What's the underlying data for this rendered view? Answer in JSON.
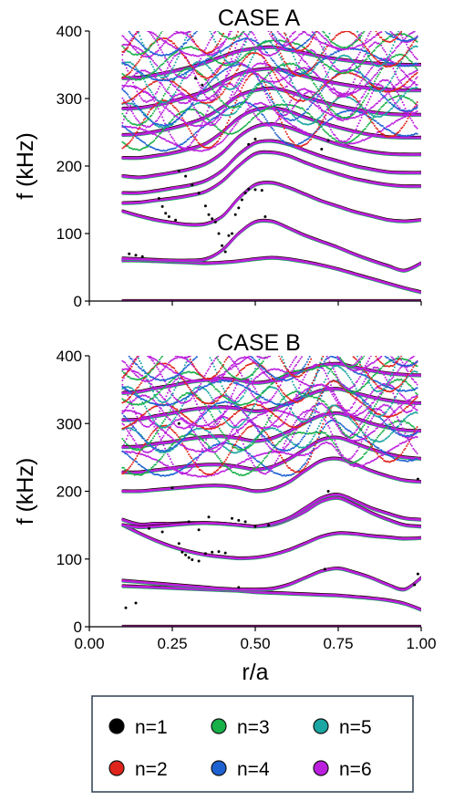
{
  "chart_data": [
    {
      "type": "scatter",
      "title": "CASE A",
      "xlabel": "",
      "ylabel": "f (kHz)",
      "xlim": [
        0.0,
        1.0
      ],
      "ylim": [
        0,
        400
      ],
      "xticks": [
        0.0,
        0.25,
        0.5,
        0.75,
        1.0
      ],
      "yticks": [
        0,
        100,
        200,
        300,
        400
      ],
      "ytick_labels": [
        "0",
        "100",
        "200",
        "300",
        "400"
      ],
      "grid": false,
      "dominant_series": "n=6",
      "x_grid": [
        0.1,
        0.15,
        0.2,
        0.25,
        0.3,
        0.35,
        0.4,
        0.45,
        0.5,
        0.55,
        0.6,
        0.65,
        0.7,
        0.75,
        0.8,
        0.85,
        0.9,
        0.95,
        1.0
      ],
      "continuum_branches": [
        [
          0,
          0,
          0,
          0,
          0,
          0,
          0,
          0,
          0,
          0,
          0,
          0,
          0,
          0,
          0,
          0,
          0,
          0,
          0
        ],
        [
          60,
          60,
          59,
          58,
          57,
          56,
          57,
          59,
          62,
          64,
          62,
          58,
          53,
          47,
          40,
          33,
          26,
          19,
          13
        ],
        [
          63,
          62,
          61,
          60,
          60,
          62,
          75,
          100,
          117,
          118,
          108,
          97,
          88,
          79,
          69,
          60,
          52,
          45,
          56
        ],
        [
          133,
          126,
          120,
          116,
          113,
          114,
          125,
          152,
          172,
          175,
          168,
          158,
          148,
          140,
          132,
          126,
          120,
          118,
          120
        ],
        [
          145,
          146,
          149,
          152,
          156,
          162,
          177,
          200,
          218,
          220,
          215,
          205,
          196,
          188,
          181,
          176,
          172,
          170,
          170
        ],
        [
          160,
          160,
          163,
          167,
          171,
          178,
          193,
          217,
          234,
          237,
          232,
          223,
          214,
          207,
          200,
          195,
          191,
          190,
          190
        ],
        [
          185,
          183,
          186,
          190,
          195,
          203,
          219,
          243,
          258,
          262,
          257,
          248,
          240,
          232,
          226,
          221,
          218,
          217,
          217
        ],
        [
          212,
          212,
          215,
          219,
          225,
          233,
          250,
          271,
          283,
          286,
          281,
          272,
          264,
          257,
          251,
          246,
          243,
          242,
          242
        ],
        [
          246,
          247,
          251,
          256,
          263,
          272,
          287,
          304,
          312,
          315,
          310,
          302,
          295,
          289,
          284,
          280,
          277,
          276,
          276
        ],
        [
          285,
          286,
          290,
          296,
          303,
          311,
          324,
          336,
          342,
          344,
          340,
          333,
          327,
          322,
          318,
          315,
          313,
          312,
          312
        ],
        [
          330,
          331,
          335,
          340,
          346,
          353,
          362,
          370,
          374,
          376,
          372,
          367,
          362,
          358,
          355,
          352,
          351,
          350,
          350
        ]
      ],
      "n1_markers": [
        [
          0.12,
          70
        ],
        [
          0.14,
          68
        ],
        [
          0.16,
          66
        ],
        [
          0.27,
          193
        ],
        [
          0.29,
          185
        ],
        [
          0.31,
          172
        ],
        [
          0.33,
          160
        ],
        [
          0.35,
          141
        ],
        [
          0.36,
          128
        ],
        [
          0.37,
          122
        ],
        [
          0.38,
          117
        ],
        [
          0.39,
          100
        ],
        [
          0.4,
          82
        ],
        [
          0.41,
          73
        ],
        [
          0.42,
          97
        ],
        [
          0.43,
          100
        ],
        [
          0.44,
          128
        ],
        [
          0.45,
          138
        ],
        [
          0.46,
          150
        ],
        [
          0.47,
          160
        ],
        [
          0.48,
          166
        ],
        [
          0.5,
          165
        ],
        [
          0.52,
          164
        ],
        [
          0.53,
          125
        ],
        [
          0.21,
          152
        ],
        [
          0.22,
          140
        ],
        [
          0.23,
          130
        ],
        [
          0.24,
          125
        ],
        [
          0.26,
          120
        ],
        [
          0.32,
          330
        ],
        [
          0.34,
          320
        ],
        [
          0.7,
          225
        ],
        [
          0.72,
          238
        ],
        [
          0.5,
          240
        ],
        [
          0.48,
          232
        ]
      ],
      "series": [
        {
          "name": "n=1",
          "color": "#000000"
        },
        {
          "name": "n=2",
          "color": "#e0241c"
        },
        {
          "name": "n=3",
          "color": "#18b048"
        },
        {
          "name": "n=4",
          "color": "#1e62d2"
        },
        {
          "name": "n=5",
          "color": "#1aa6a2"
        },
        {
          "name": "n=6",
          "color": "#bb1fdd"
        }
      ]
    },
    {
      "type": "scatter",
      "title": "CASE B",
      "xlabel": "r/a",
      "ylabel": "f (kHz)",
      "xlim": [
        0.0,
        1.0
      ],
      "ylim": [
        0,
        400
      ],
      "xticks": [
        0.0,
        0.25,
        0.5,
        0.75,
        1.0
      ],
      "xtick_labels": [
        "0.00",
        "0.25",
        "0.50",
        "0.75",
        "1.00"
      ],
      "yticks": [
        0,
        100,
        200,
        300,
        400
      ],
      "ytick_labels": [
        "0",
        "100",
        "200",
        "300",
        "400"
      ],
      "grid": false,
      "dominant_series": "n=6",
      "x_grid": [
        0.1,
        0.15,
        0.2,
        0.25,
        0.3,
        0.35,
        0.4,
        0.45,
        0.5,
        0.55,
        0.6,
        0.65,
        0.7,
        0.75,
        0.8,
        0.85,
        0.9,
        0.95,
        1.0
      ],
      "continuum_branches": [
        [
          0,
          0,
          0,
          0,
          0,
          0,
          0,
          0,
          0,
          0,
          0,
          0,
          0,
          0,
          0,
          0,
          0,
          0,
          0
        ],
        [
          60,
          59,
          58,
          57,
          56,
          55,
          54,
          53,
          51,
          50,
          49,
          48,
          47,
          46,
          44,
          42,
          39,
          34,
          25
        ],
        [
          68,
          66,
          64,
          62,
          60,
          58,
          56,
          55,
          55,
          56,
          62,
          72,
          82,
          86,
          80,
          72,
          62,
          55,
          72
        ],
        [
          150,
          138,
          127,
          118,
          111,
          106,
          103,
          101,
          102,
          106,
          113,
          123,
          133,
          138,
          137,
          134,
          132,
          130,
          131
        ],
        [
          158,
          151,
          152,
          152,
          153,
          153,
          152,
          150,
          148,
          150,
          158,
          170,
          185,
          190,
          180,
          168,
          158,
          150,
          148
        ],
        [
          150,
          147,
          148,
          150,
          152,
          153,
          152,
          150,
          148,
          152,
          160,
          175,
          190,
          195,
          186,
          175,
          167,
          160,
          158
        ],
        [
          200,
          200,
          202,
          204,
          206,
          208,
          208,
          205,
          200,
          203,
          213,
          230,
          245,
          248,
          240,
          230,
          222,
          216,
          214
        ],
        [
          228,
          228,
          231,
          234,
          237,
          239,
          239,
          236,
          232,
          236,
          247,
          262,
          276,
          279,
          271,
          262,
          255,
          250,
          248
        ],
        [
          265,
          266,
          270,
          273,
          277,
          280,
          281,
          278,
          274,
          278,
          288,
          301,
          312,
          315,
          308,
          300,
          294,
          290,
          289
        ],
        [
          305,
          306,
          311,
          315,
          320,
          323,
          324,
          322,
          318,
          321,
          330,
          340,
          349,
          351,
          345,
          339,
          334,
          331,
          330
        ],
        [
          345,
          347,
          352,
          356,
          361,
          364,
          366,
          364,
          360,
          363,
          371,
          379,
          386,
          388,
          383,
          378,
          374,
          372,
          371
        ]
      ],
      "n1_markers": [
        [
          0.11,
          28
        ],
        [
          0.14,
          35
        ],
        [
          0.18,
          145
        ],
        [
          0.22,
          140
        ],
        [
          0.27,
          123
        ],
        [
          0.28,
          110
        ],
        [
          0.29,
          106
        ],
        [
          0.3,
          102
        ],
        [
          0.31,
          99
        ],
        [
          0.33,
          97
        ],
        [
          0.35,
          108
        ],
        [
          0.37,
          110
        ],
        [
          0.39,
          111
        ],
        [
          0.41,
          109
        ],
        [
          0.43,
          160
        ],
        [
          0.45,
          157
        ],
        [
          0.47,
          155
        ],
        [
          0.5,
          148
        ],
        [
          0.54,
          150
        ],
        [
          0.3,
          155
        ],
        [
          0.33,
          143
        ],
        [
          0.36,
          162
        ],
        [
          0.25,
          205
        ],
        [
          0.27,
          300
        ],
        [
          0.45,
          58
        ],
        [
          0.98,
          62
        ],
        [
          0.99,
          78
        ],
        [
          0.99,
          218
        ],
        [
          0.71,
          85
        ],
        [
          0.72,
          200
        ]
      ],
      "series": [
        {
          "name": "n=1",
          "color": "#000000"
        },
        {
          "name": "n=2",
          "color": "#e0241c"
        },
        {
          "name": "n=3",
          "color": "#18b048"
        },
        {
          "name": "n=4",
          "color": "#1e62d2"
        },
        {
          "name": "n=5",
          "color": "#1aa6a2"
        },
        {
          "name": "n=6",
          "color": "#bb1fdd"
        }
      ]
    }
  ],
  "legend": {
    "placement": "bottom",
    "entries": [
      {
        "label": "n=1",
        "color": "#000000"
      },
      {
        "label": "n=3",
        "color": "#18b048"
      },
      {
        "label": "n=5",
        "color": "#1aa6a2"
      },
      {
        "label": "n=2",
        "color": "#e0241c"
      },
      {
        "label": "n=4",
        "color": "#1e62d2"
      },
      {
        "label": "n=6",
        "color": "#bb1fdd"
      }
    ]
  }
}
